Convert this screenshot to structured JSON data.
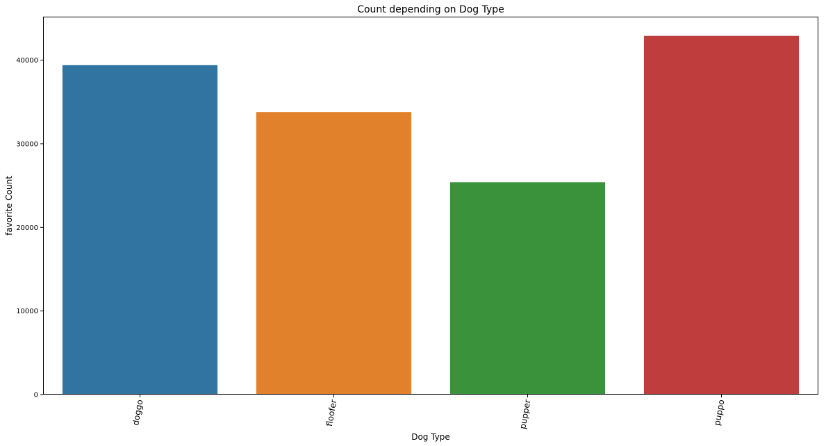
{
  "chart_data": {
    "type": "bar",
    "title": "Count depending on Dog Type",
    "xlabel": "Dog Type",
    "ylabel": "favorite Count",
    "categories": [
      "doggo",
      "floofer",
      "pupper",
      "puppo"
    ],
    "values": [
      39400,
      33800,
      25400,
      42900
    ],
    "colors": [
      "#3274a1",
      "#e1812c",
      "#3a923a",
      "#c03d3e"
    ],
    "ylim": [
      0,
      45200
    ],
    "yticks": [
      0,
      10000,
      20000,
      30000,
      40000
    ],
    "ytick_labels": [
      "0",
      "10000",
      "20000",
      "30000",
      "40000"
    ],
    "grid": false,
    "legend": "none"
  }
}
